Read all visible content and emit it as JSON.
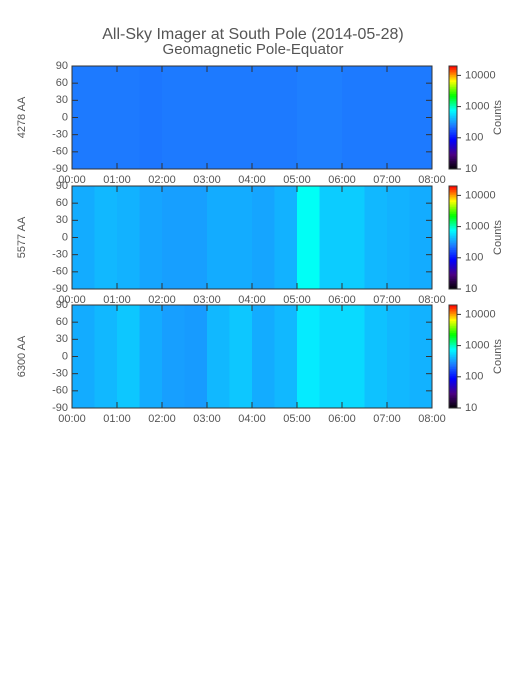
{
  "chart_data": [
    {
      "type": "heatmap",
      "title": "All-Sky Imager at South Pole (2014-05-28)",
      "subtitle": "Geomagnetic Pole-Equator",
      "ylabel": "4278 AA",
      "xbins": [
        0,
        0.5,
        1,
        1.5,
        2,
        2.5,
        3,
        3.5,
        4,
        4.5,
        5,
        5.5,
        6,
        6.5,
        7,
        7.5,
        8
      ],
      "values": [
        250,
        250,
        250,
        240,
        250,
        250,
        250,
        250,
        250,
        250,
        260,
        260,
        250,
        250,
        250,
        250
      ],
      "xlim": [
        0,
        8
      ],
      "xticks": [
        {
          "value": 0,
          "label": "00:00"
        },
        {
          "value": 1,
          "label": "01:00"
        },
        {
          "value": 2,
          "label": "02:00"
        },
        {
          "value": 3,
          "label": "03:00"
        },
        {
          "value": 4,
          "label": "04:00"
        },
        {
          "value": 5,
          "label": "05:00"
        },
        {
          "value": 6,
          "label": "06:00"
        },
        {
          "value": 7,
          "label": "07:00"
        },
        {
          "value": 8,
          "label": "08:00"
        }
      ],
      "ylim": [
        -90,
        90
      ],
      "yticks": [
        -90,
        -60,
        -30,
        0,
        30,
        60,
        90
      ],
      "clim": [
        10,
        20000
      ],
      "cticks": [
        10,
        100,
        1000,
        10000
      ],
      "colorbar_label": "Counts",
      "colormap": [
        "#000000",
        "#4b0082",
        "#0000ff",
        "#1e7fff",
        "#00ffff",
        "#00ff00",
        "#ffff00",
        "#ff0000"
      ]
    },
    {
      "type": "heatmap",
      "ylabel": "5577 AA",
      "xbins": [
        0,
        0.5,
        1,
        1.5,
        2,
        2.5,
        3,
        3.5,
        4,
        4.5,
        5,
        5.5,
        6,
        6.5,
        7,
        7.5,
        8
      ],
      "values": [
        380,
        420,
        400,
        360,
        340,
        340,
        380,
        380,
        360,
        400,
        800,
        500,
        500,
        420,
        400,
        380
      ],
      "xlim": [
        0,
        8
      ],
      "xticks": [
        {
          "value": 0,
          "label": "00:00"
        },
        {
          "value": 1,
          "label": "01:00"
        },
        {
          "value": 2,
          "label": "02:00"
        },
        {
          "value": 3,
          "label": "03:00"
        },
        {
          "value": 4,
          "label": "04:00"
        },
        {
          "value": 5,
          "label": "05:00"
        },
        {
          "value": 6,
          "label": "06:00"
        },
        {
          "value": 7,
          "label": "07:00"
        },
        {
          "value": 8,
          "label": "08:00"
        }
      ],
      "ylim": [
        -90,
        90
      ],
      "yticks": [
        -90,
        -60,
        -30,
        0,
        30,
        60,
        90
      ],
      "clim": [
        10,
        20000
      ],
      "cticks": [
        10,
        100,
        1000,
        10000
      ],
      "colorbar_label": "Counts",
      "colormap": [
        "#000000",
        "#4b0082",
        "#0000ff",
        "#1e7fff",
        "#00ffff",
        "#00ff00",
        "#ffff00",
        "#ff0000"
      ]
    },
    {
      "type": "heatmap",
      "ylabel": "6300 AA",
      "xbins": [
        0,
        0.5,
        1,
        1.5,
        2,
        2.5,
        3,
        3.5,
        4,
        4.5,
        5,
        5.5,
        6,
        6.5,
        7,
        7.5,
        8
      ],
      "values": [
        380,
        420,
        480,
        380,
        340,
        330,
        420,
        480,
        380,
        420,
        650,
        560,
        560,
        460,
        420,
        400
      ],
      "xlim": [
        0,
        8
      ],
      "xticks": [
        {
          "value": 0,
          "label": "00:00"
        },
        {
          "value": 1,
          "label": "01:00"
        },
        {
          "value": 2,
          "label": "02:00"
        },
        {
          "value": 3,
          "label": "03:00"
        },
        {
          "value": 4,
          "label": "04:00"
        },
        {
          "value": 5,
          "label": "05:00"
        },
        {
          "value": 6,
          "label": "06:00"
        },
        {
          "value": 7,
          "label": "07:00"
        },
        {
          "value": 8,
          "label": "08:00"
        }
      ],
      "ylim": [
        -90,
        90
      ],
      "yticks": [
        -90,
        -60,
        -30,
        0,
        30,
        60,
        90
      ],
      "clim": [
        10,
        20000
      ],
      "cticks": [
        10,
        100,
        1000,
        10000
      ],
      "colorbar_label": "Counts",
      "colormap": [
        "#000000",
        "#4b0082",
        "#0000ff",
        "#1e7fff",
        "#00ffff",
        "#00ff00",
        "#ffff00",
        "#ff0000"
      ]
    }
  ]
}
